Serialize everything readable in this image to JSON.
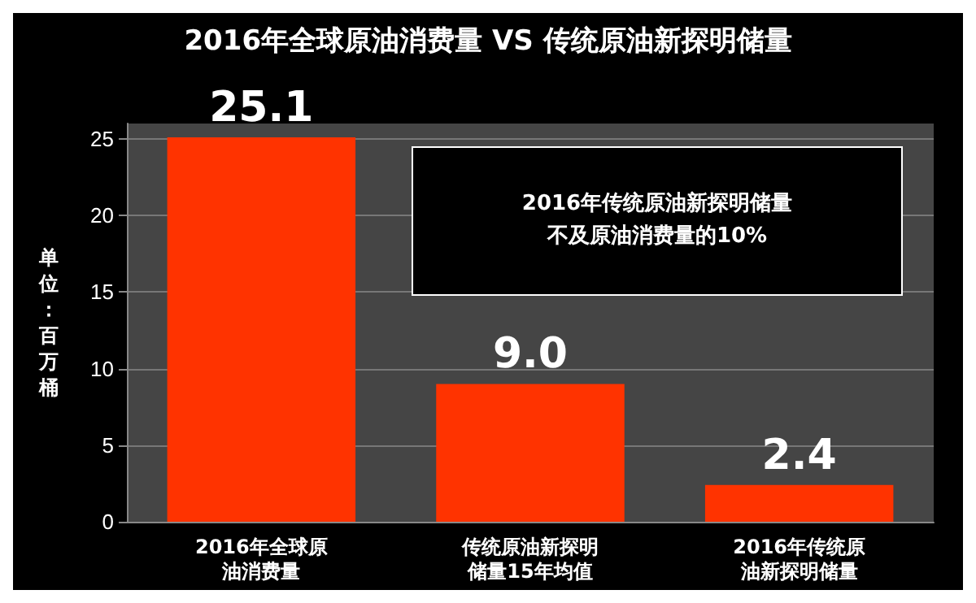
{
  "chart_data": {
    "type": "bar",
    "title": "2016年全球原油消费量 VS 传统原油新探明储量",
    "ylabel": "单位：百万桶",
    "categories": [
      "2016年全球原油消费量",
      "传统原油新探明储量15年均值",
      "2016年传统原油新探明储量"
    ],
    "values": [
      25.1,
      9.0,
      2.4
    ],
    "value_labels": [
      "25.1",
      "9.0",
      "2.4"
    ],
    "color": "#ff3300",
    "ylim": [
      0,
      26
    ],
    "yticks": [
      0,
      5,
      10,
      15,
      20,
      25
    ],
    "grid": "y",
    "annotations": [
      "2016年传统原油新探明储量不及原油消费量的10%"
    ]
  }
}
